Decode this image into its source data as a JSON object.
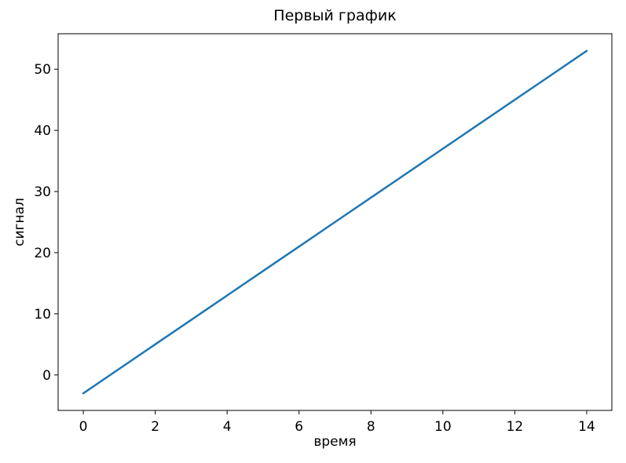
{
  "chart_data": {
    "type": "line",
    "title": "Первый график",
    "xlabel": "время",
    "ylabel": "сигнал",
    "x": [
      0,
      1,
      2,
      3,
      4,
      5,
      6,
      7,
      8,
      9,
      10,
      11,
      12,
      13,
      14
    ],
    "y": [
      -3,
      1,
      5,
      9,
      13,
      17,
      21,
      25,
      29,
      33,
      37,
      41,
      45,
      49,
      53
    ],
    "xlim": [
      -0.7,
      14.7
    ],
    "ylim": [
      -5.8,
      55.8
    ],
    "xticks": [
      0,
      2,
      4,
      6,
      8,
      10,
      12,
      14
    ],
    "yticks": [
      0,
      10,
      20,
      30,
      40,
      50
    ],
    "line_color": "#1f77b4",
    "axis_color": "#000000",
    "background_color": "#ffffff",
    "grid": false,
    "legend": null
  }
}
